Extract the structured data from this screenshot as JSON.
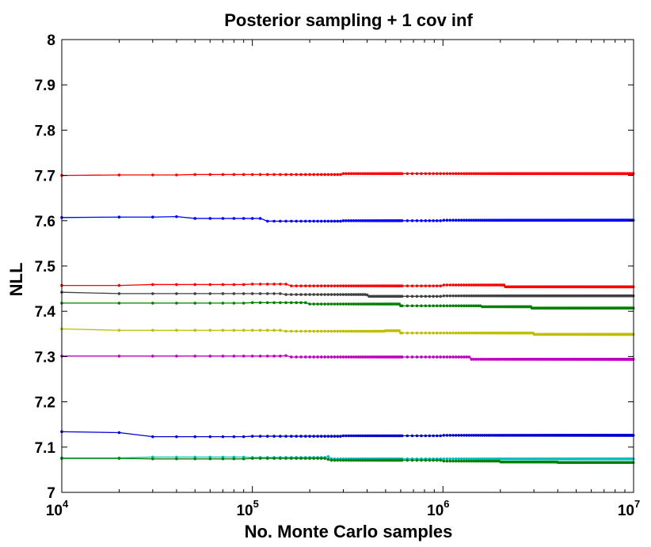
{
  "chart_data": {
    "type": "line",
    "title": "Posterior sampling + 1 cov inf",
    "xlabel": "No. Monte Carlo samples",
    "ylabel": "NLL",
    "xscale": "log",
    "xlim": [
      10000,
      10000000
    ],
    "ylim": [
      7,
      8
    ],
    "xticks": [
      {
        "base": "10",
        "exp": "4"
      },
      {
        "base": "10",
        "exp": "5"
      },
      {
        "base": "10",
        "exp": "6"
      },
      {
        "base": "10",
        "exp": "7"
      }
    ],
    "yticks": [
      "7",
      "7.1",
      "7.2",
      "7.3",
      "7.4",
      "7.5",
      "7.6",
      "7.7",
      "7.8",
      "7.9",
      "8"
    ],
    "grid": false,
    "series": [
      {
        "color": "#ff0000",
        "points": [
          [
            10000,
            7.7
          ],
          [
            20000,
            7.701
          ],
          [
            50000,
            7.702
          ],
          [
            100000,
            7.702
          ],
          [
            300000,
            7.704
          ],
          [
            1000000,
            7.704
          ],
          [
            3000000,
            7.704
          ],
          [
            10000000,
            7.705
          ]
        ]
      },
      {
        "color": "#0000ff",
        "points": [
          [
            10000,
            7.607
          ],
          [
            20000,
            7.608
          ],
          [
            40000,
            7.609
          ],
          [
            50000,
            7.605
          ],
          [
            100000,
            7.605
          ],
          [
            120000,
            7.599
          ],
          [
            300000,
            7.6
          ],
          [
            1000000,
            7.601
          ],
          [
            10000000,
            7.603
          ]
        ]
      },
      {
        "color": "#ff0000",
        "points": [
          [
            10000,
            7.457
          ],
          [
            30000,
            7.459
          ],
          [
            100000,
            7.46
          ],
          [
            150000,
            7.46
          ],
          [
            160000,
            7.456
          ],
          [
            1000000,
            7.458
          ],
          [
            2000000,
            7.458
          ],
          [
            2100000,
            7.454
          ],
          [
            10000000,
            7.452
          ]
        ]
      },
      {
        "color": "#404040",
        "points": [
          [
            10000,
            7.442
          ],
          [
            20000,
            7.439
          ],
          [
            100000,
            7.439
          ],
          [
            150000,
            7.437
          ],
          [
            400000,
            7.436
          ],
          [
            410000,
            7.433
          ],
          [
            1000000,
            7.434
          ],
          [
            10000000,
            7.433
          ]
        ]
      },
      {
        "color": "#008000",
        "points": [
          [
            10000,
            7.418
          ],
          [
            100000,
            7.419
          ],
          [
            200000,
            7.416
          ],
          [
            600000,
            7.412
          ],
          [
            1500000,
            7.412
          ],
          [
            1600000,
            7.41
          ],
          [
            2800000,
            7.41
          ],
          [
            2900000,
            7.407
          ],
          [
            10000000,
            7.408
          ]
        ]
      },
      {
        "color": "#bfbf00",
        "points": [
          [
            10000,
            7.361
          ],
          [
            20000,
            7.358
          ],
          [
            100000,
            7.358
          ],
          [
            150000,
            7.356
          ],
          [
            500000,
            7.357
          ],
          [
            600000,
            7.352
          ],
          [
            2000000,
            7.352
          ],
          [
            3000000,
            7.349
          ],
          [
            10000000,
            7.351
          ]
        ]
      },
      {
        "color": "#bf00bf",
        "points": [
          [
            10000,
            7.301
          ],
          [
            100000,
            7.301
          ],
          [
            150000,
            7.302
          ],
          [
            160000,
            7.299
          ],
          [
            1300000,
            7.299
          ],
          [
            1400000,
            7.294
          ],
          [
            10000000,
            7.293
          ]
        ]
      },
      {
        "color": "#0000cd",
        "points": [
          [
            10000,
            7.134
          ],
          [
            20000,
            7.132
          ],
          [
            30000,
            7.123
          ],
          [
            100000,
            7.124
          ],
          [
            300000,
            7.125
          ],
          [
            1000000,
            7.126
          ],
          [
            10000000,
            7.126
          ]
        ]
      },
      {
        "color": "#00bfbf",
        "points": [
          [
            10000,
            7.076
          ],
          [
            30000,
            7.078
          ],
          [
            100000,
            7.077
          ],
          [
            250000,
            7.079
          ],
          [
            260000,
            7.074
          ],
          [
            1000000,
            7.074
          ],
          [
            10000000,
            7.076
          ]
        ]
      },
      {
        "color": "#008000",
        "points": [
          [
            10000,
            7.075
          ],
          [
            30000,
            7.074
          ],
          [
            100000,
            7.075
          ],
          [
            250000,
            7.073
          ],
          [
            260000,
            7.071
          ],
          [
            1000000,
            7.069
          ],
          [
            2000000,
            7.067
          ],
          [
            4000000,
            7.066
          ],
          [
            10000000,
            7.064
          ]
        ]
      }
    ]
  }
}
